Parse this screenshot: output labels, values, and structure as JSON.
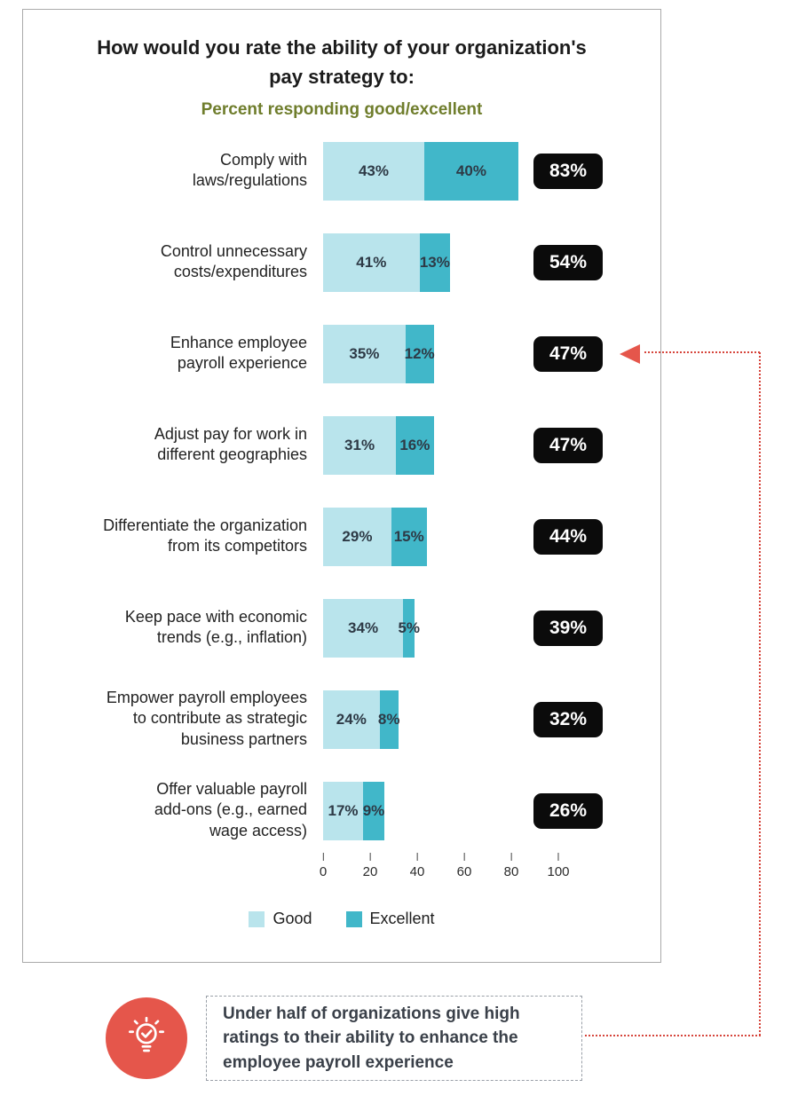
{
  "chart_data": {
    "type": "bar",
    "orientation": "horizontal",
    "stacked": true,
    "title": "How would you rate the ability of your organization's\npay strategy to:",
    "subtitle": "Percent responding good/excellent",
    "categories": [
      "Comply with\nlaws/regulations",
      "Control unnecessary\ncosts/expenditures",
      "Enhance employee\npayroll experience",
      "Adjust pay for work in\ndifferent geographies",
      "Differentiate the organization\nfrom its competitors",
      "Keep pace with economic\ntrends (e.g., inflation)",
      "Empower payroll employees\nto contribute as strategic\nbusiness partners",
      "Offer valuable payroll\nadd-ons (e.g., earned\nwage access)"
    ],
    "series": [
      {
        "name": "Good",
        "color": "#b9e4ec",
        "values": [
          43,
          41,
          35,
          31,
          29,
          34,
          24,
          17
        ]
      },
      {
        "name": "Excellent",
        "color": "#41b7c9",
        "values": [
          40,
          13,
          12,
          16,
          15,
          5,
          8,
          9
        ]
      }
    ],
    "totals": [
      "83%",
      "54%",
      "47%",
      "47%",
      "44%",
      "39%",
      "32%",
      "26%"
    ],
    "xlim": [
      0,
      100
    ],
    "x_ticks": [
      0,
      20,
      40,
      60,
      80,
      100
    ],
    "legend_position": "bottom",
    "highlighted_category_index": 2
  },
  "callout": {
    "icon": "lightbulb-icon",
    "text": "Under half of organizations give high ratings to their ability to enhance the employee payroll experience"
  },
  "colors": {
    "good": "#b9e4ec",
    "excellent": "#41b7c9",
    "badge_bg": "#0b0b0b",
    "badge_text": "#ffffff",
    "subtitle_green": "#6f7d2c",
    "accent_red": "#e5564b",
    "connector_red": "#d6453c"
  }
}
